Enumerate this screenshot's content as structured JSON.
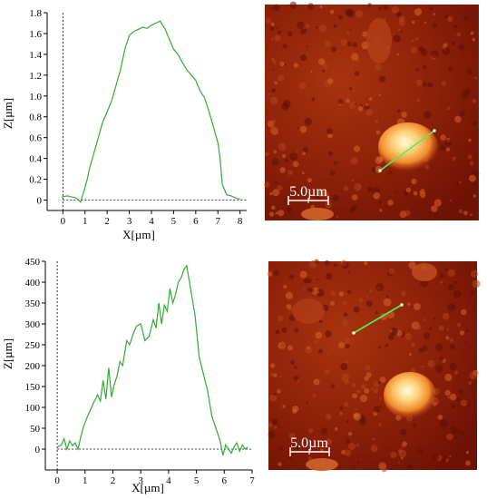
{
  "chart_data": [
    {
      "type": "line",
      "xlabel": "X[µm]",
      "ylabel": "Z[µm]",
      "xlim": [
        -0.3,
        8.3
      ],
      "ylim": [
        -0.1,
        1.8
      ],
      "xticks": [
        0,
        1,
        2,
        3,
        4,
        5,
        6,
        7,
        8
      ],
      "xtick_labels": [
        "0",
        "1",
        "2",
        "3",
        "4",
        "5",
        "6",
        "7",
        "8"
      ],
      "yticks": [
        0,
        0.2,
        0.4,
        0.6,
        0.8,
        1.0,
        1.2,
        1.4,
        1.6,
        1.8
      ],
      "ytick_labels": [
        "0",
        "0.2",
        "0.4",
        "0.6",
        "0.8",
        "1.0",
        "1.2",
        "1.4",
        "1.6",
        "1.8"
      ],
      "baseline": 0,
      "color": "#33aa33",
      "x": [
        -0.05,
        0.2,
        0.4,
        0.6,
        0.8,
        0.9,
        1.0,
        1.1,
        1.2,
        1.4,
        1.6,
        1.8,
        2.0,
        2.2,
        2.4,
        2.6,
        2.8,
        3.0,
        3.2,
        3.4,
        3.6,
        3.8,
        4.0,
        4.2,
        4.4,
        4.5,
        4.6,
        4.8,
        5.0,
        5.2,
        5.4,
        5.6,
        5.8,
        6.0,
        6.2,
        6.4,
        6.6,
        6.8,
        7.0,
        7.1,
        7.2,
        7.4,
        7.6,
        7.8,
        8.0
      ],
      "y": [
        0.03,
        0.04,
        0.03,
        0.02,
        -0.02,
        0.05,
        0.12,
        0.2,
        0.3,
        0.45,
        0.6,
        0.75,
        0.85,
        0.95,
        1.1,
        1.25,
        1.45,
        1.58,
        1.62,
        1.64,
        1.66,
        1.65,
        1.68,
        1.7,
        1.72,
        1.68,
        1.65,
        1.55,
        1.45,
        1.4,
        1.32,
        1.25,
        1.2,
        1.15,
        1.05,
        0.98,
        0.85,
        0.7,
        0.55,
        0.4,
        0.15,
        0.05,
        0.04,
        0.02,
        0.01
      ]
    },
    {
      "type": "line",
      "xlabel": "X[µm]",
      "ylabel": "Z[µm]",
      "xlim": [
        -0.1,
        7.0
      ],
      "ylim": [
        -50,
        450
      ],
      "xticks": [
        0,
        1,
        2,
        3,
        4,
        5,
        6,
        7
      ],
      "xtick_labels": [
        "0",
        "1",
        "2",
        "3",
        "4",
        "5",
        "6",
        "7"
      ],
      "yticks": [
        0,
        50,
        100,
        150,
        200,
        250,
        300,
        350,
        400,
        450
      ],
      "ytick_labels": [
        "0",
        "50",
        "100",
        "150",
        "200",
        "250",
        "300",
        "350",
        "400",
        "450"
      ],
      "baseline": 0,
      "color": "#33aa33",
      "x": [
        0.0,
        0.15,
        0.25,
        0.35,
        0.45,
        0.55,
        0.65,
        0.75,
        0.85,
        0.95,
        1.1,
        1.3,
        1.45,
        1.55,
        1.65,
        1.75,
        1.85,
        1.95,
        2.05,
        2.15,
        2.25,
        2.35,
        2.5,
        2.6,
        2.75,
        2.85,
        3.0,
        3.15,
        3.3,
        3.45,
        3.55,
        3.65,
        3.75,
        3.85,
        3.95,
        4.05,
        4.15,
        4.25,
        4.35,
        4.45,
        4.55,
        4.65,
        4.8,
        4.95,
        5.1,
        5.25,
        5.4,
        5.55,
        5.7,
        5.85,
        5.95,
        6.05,
        6.15,
        6.25,
        6.35,
        6.45,
        6.55,
        6.65,
        6.75,
        6.85
      ],
      "y": [
        5,
        10,
        25,
        0,
        20,
        8,
        15,
        0,
        30,
        55,
        80,
        110,
        130,
        115,
        165,
        120,
        195,
        125,
        155,
        175,
        210,
        200,
        260,
        250,
        280,
        295,
        300,
        260,
        270,
        310,
        290,
        350,
        300,
        345,
        330,
        385,
        350,
        370,
        400,
        410,
        430,
        440,
        380,
        320,
        220,
        180,
        140,
        80,
        50,
        20,
        -15,
        10,
        0,
        -10,
        5,
        15,
        -5,
        10,
        0,
        5
      ]
    }
  ],
  "images": [
    {
      "scale_label": "5.0µm",
      "marker_color": "#55ee55"
    },
    {
      "scale_label": "5.0µm",
      "marker_color": "#55ee55"
    }
  ]
}
